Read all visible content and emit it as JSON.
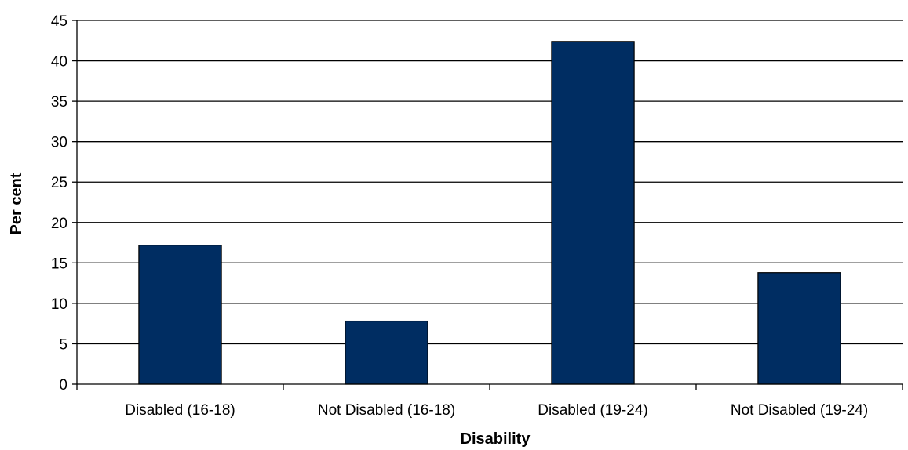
{
  "chart_data": {
    "type": "bar",
    "title": "",
    "xlabel": "Disability",
    "ylabel": "Per cent",
    "categories": [
      "Disabled (16-18)",
      "Not Disabled (16-18)",
      "Disabled (19-24)",
      "Not Disabled (19-24)"
    ],
    "values": [
      17.2,
      7.8,
      42.4,
      13.8
    ],
    "ylim": [
      0,
      45
    ],
    "yticks": [
      0,
      5,
      10,
      15,
      20,
      25,
      30,
      35,
      40,
      45
    ],
    "yticks_text": [
      "0",
      "5",
      "10",
      "15",
      "20",
      "25",
      "30",
      "35",
      "40",
      "45"
    ],
    "grid": true,
    "legend": "none",
    "colors": {
      "bar_fill": "#002D62",
      "bar_stroke": "#000000",
      "gridline": "#000000"
    }
  }
}
